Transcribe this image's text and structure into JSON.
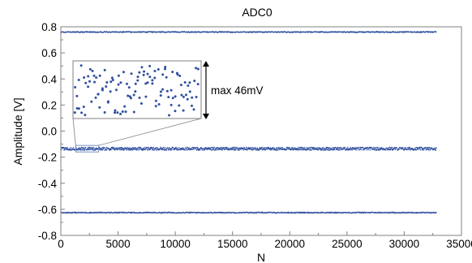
{
  "chart_data": {
    "type": "scatter",
    "title": "ADC0",
    "xlabel": "N",
    "ylabel": "Amplitude [V]",
    "xlim": [
      0,
      35000
    ],
    "ylim": [
      -0.8,
      0.8
    ],
    "x_ticks": [
      0,
      5000,
      10000,
      15000,
      20000,
      25000,
      30000,
      35000
    ],
    "y_ticks": [
      -0.8,
      -0.6,
      -0.4,
      -0.2,
      0.0,
      0.2,
      0.4,
      0.6,
      0.8
    ],
    "x_tick_labels": [
      "0",
      "5000",
      "10000",
      "15000",
      "20000",
      "25000",
      "30000",
      "35000"
    ],
    "y_tick_labels": [
      "-0.8",
      "-0.6",
      "-0.4",
      "-0.2",
      "0.0",
      "0.2",
      "0.4",
      "0.6",
      "0.8"
    ],
    "grid": false,
    "marker_color": "#2f4f9f",
    "series": [
      {
        "x_range": [
          0,
          32768
        ],
        "y_mean": 0.76,
        "y_spread": 0.008
      },
      {
        "x_range": [
          0,
          32768
        ],
        "y_mean": -0.135,
        "y_spread": 0.023
      },
      {
        "x_range": [
          0,
          32768
        ],
        "y_mean": -0.625,
        "y_spread": 0.008
      }
    ],
    "inset": {
      "zoom_x_range": [
        1300,
        3300
      ],
      "zoom_y_range": [
        -0.16,
        -0.11
      ],
      "annotation": "max 46mV"
    }
  }
}
